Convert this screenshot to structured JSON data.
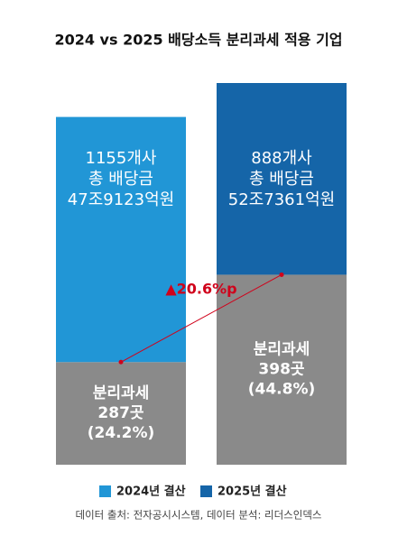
{
  "chart_data": {
    "type": "stacked-bar",
    "title": "2024 vs 2025 배당소득 분리과세 적용 기업",
    "categories": [
      "2024년 결산",
      "2025년 결산"
    ],
    "category_colors": [
      "#2196d6",
      "#1565a8"
    ],
    "ylim": [
      0,
      90
    ],
    "series": [
      {
        "name": "분리과세",
        "color": "#8a8a8a",
        "values": [
          24.2,
          44.8
        ],
        "counts": [
          "287곳",
          "398곳"
        ],
        "value_labels": [
          "(24.2%)",
          "(44.8%)"
        ]
      },
      {
        "name": "총 배당금",
        "values": [
          57.8,
          45.2
        ],
        "companies": [
          "1155개사",
          "888개사"
        ],
        "dividends": [
          "47조9123억원",
          "52조7361억원"
        ]
      }
    ],
    "annotation": "▲20.6%p",
    "annotation_color": "#d0021b",
    "source": "데이터 출처: 전자공시시스템, 데이터 분석: 리더스인덱스"
  }
}
